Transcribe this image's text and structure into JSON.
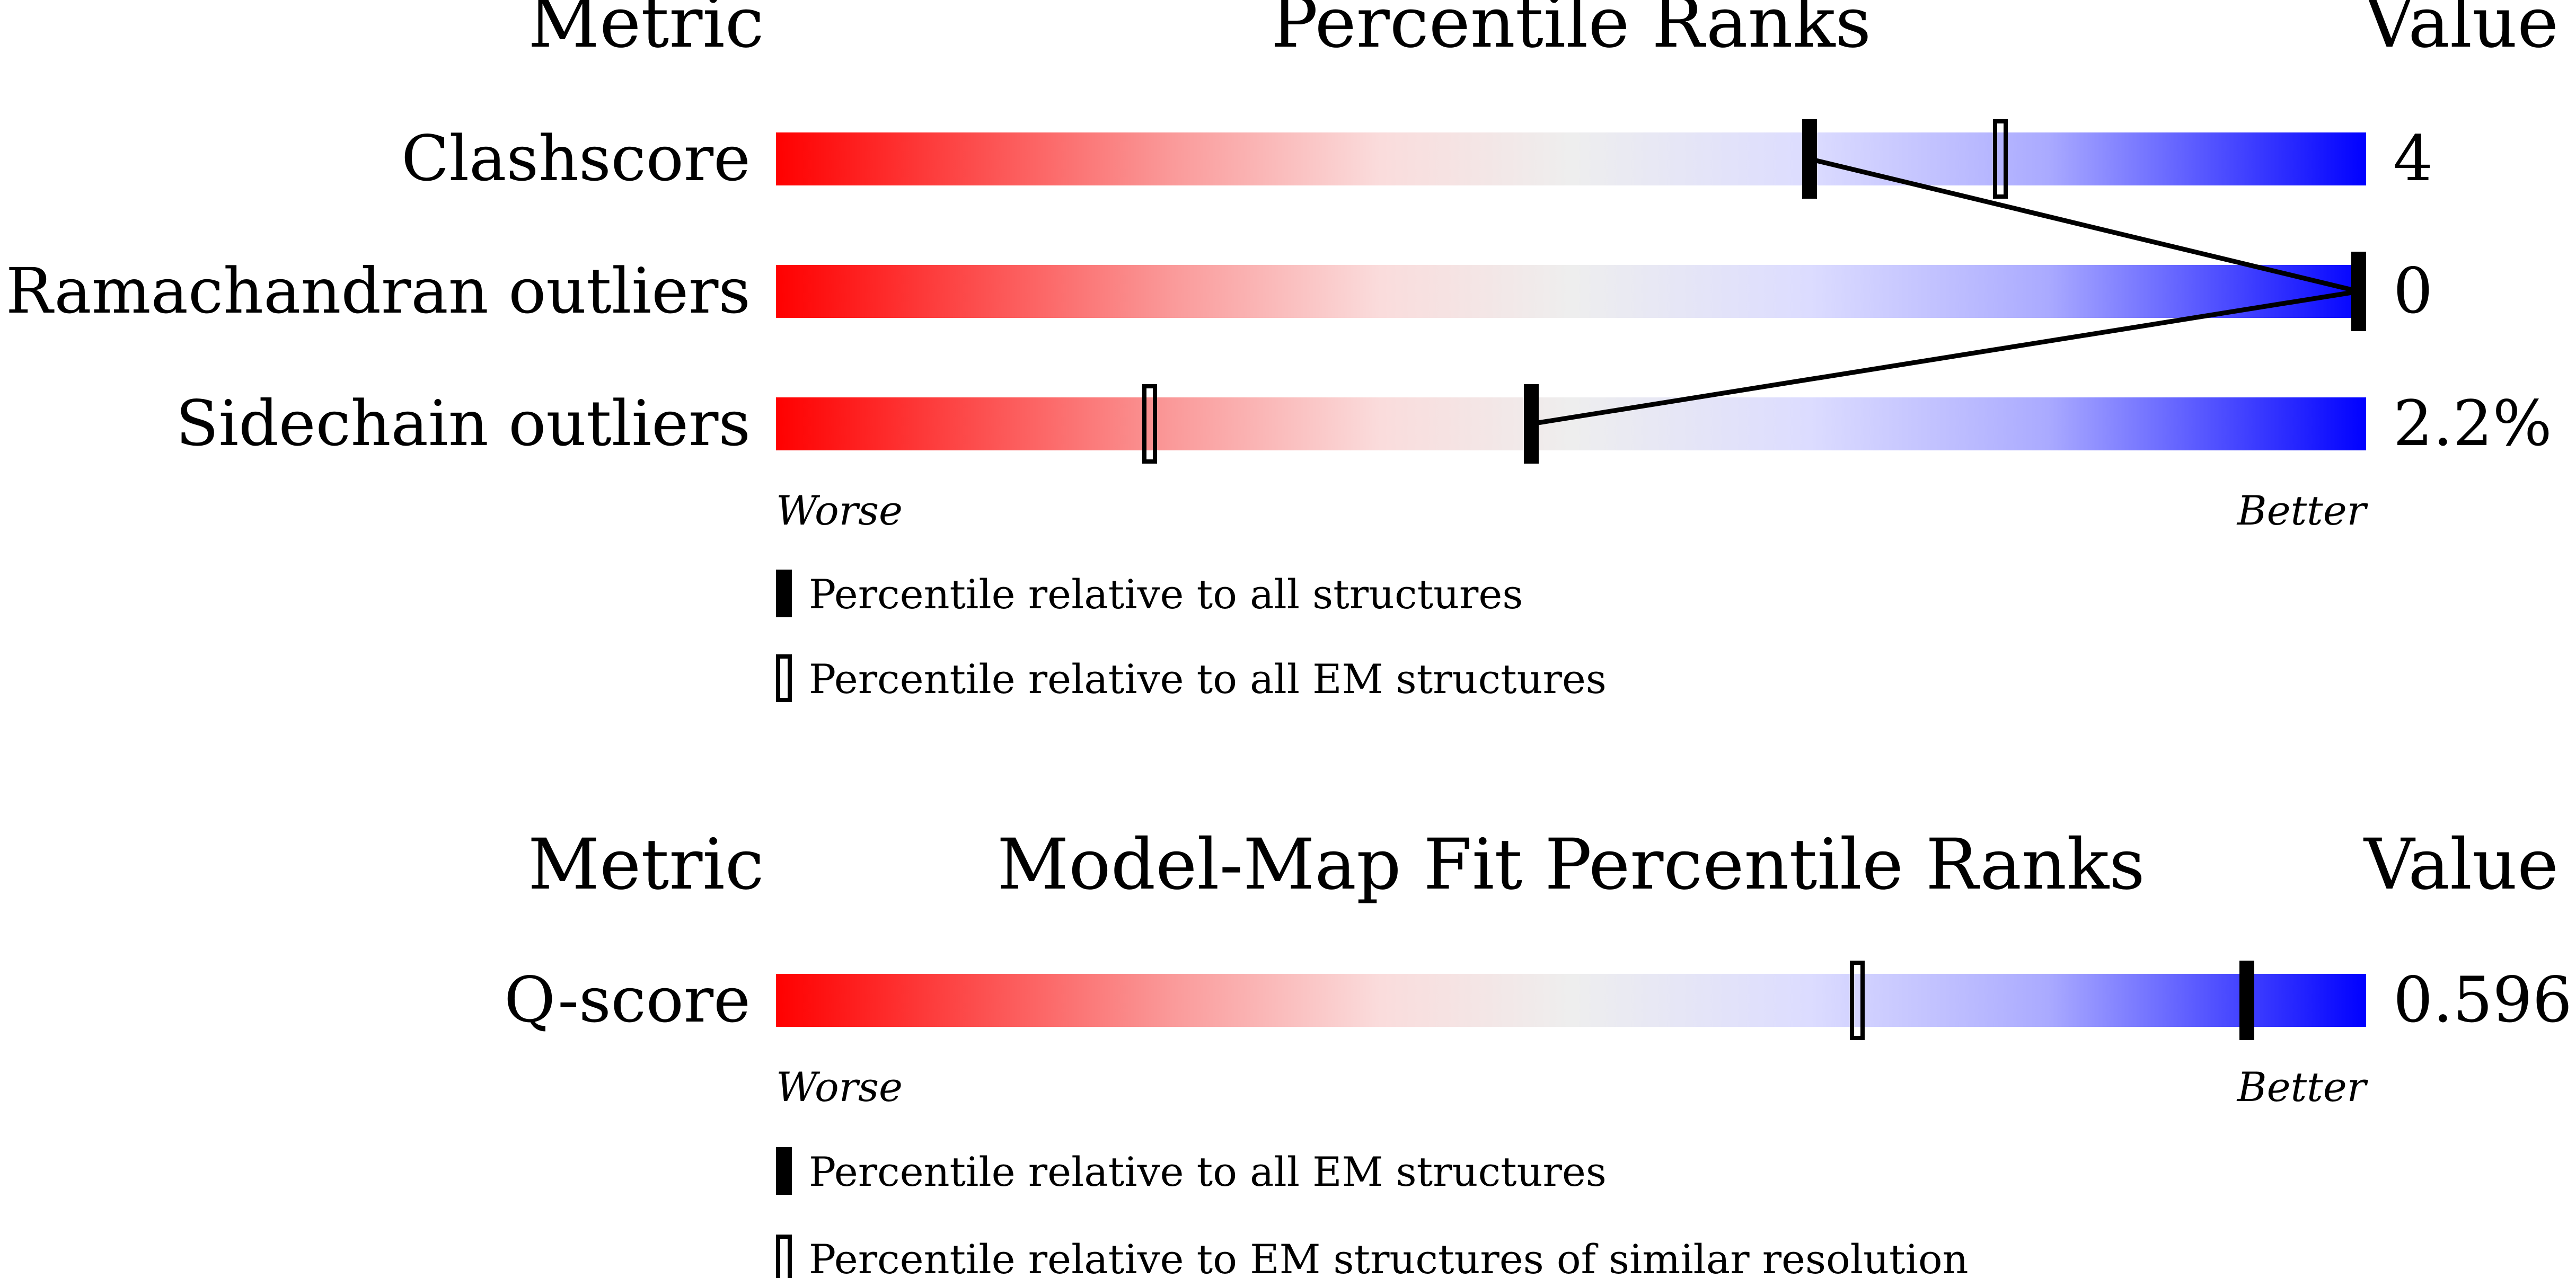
{
  "colors": {
    "worse": "#ff0000",
    "mid": "#eeeeee",
    "better_light": "#dcdcff",
    "better": "#0000ff",
    "marker": "#000000"
  },
  "chart_data": [
    {
      "type": "percentile_bar",
      "headers": {
        "metric": "Metric",
        "title": "Percentile Ranks",
        "value": "Value"
      },
      "xlim": [
        0,
        100
      ],
      "axis_words": {
        "worse": "Worse",
        "better": "Better"
      },
      "rows": [
        {
          "metric": "Clashscore",
          "value": "4",
          "percentile_all": 65,
          "percentile_em": 77
        },
        {
          "metric": "Ramachandran outliers",
          "value": "0",
          "percentile_all": 100,
          "percentile_em": 100
        },
        {
          "metric": "Sidechain outliers",
          "value": "2.2%",
          "percentile_all": 47.5,
          "percentile_em": 23.5
        }
      ],
      "connect_filled_markers": true,
      "legend": [
        {
          "marker": "filled",
          "icon": "filled-marker-icon",
          "label": "Percentile relative to all structures"
        },
        {
          "marker": "open",
          "icon": "open-marker-icon",
          "label": "Percentile relative to all EM structures"
        }
      ]
    },
    {
      "type": "percentile_bar",
      "headers": {
        "metric": "Metric",
        "title": "Model-Map Fit Percentile Ranks",
        "value": "Value"
      },
      "xlim": [
        0,
        100
      ],
      "axis_words": {
        "worse": "Worse",
        "better": "Better"
      },
      "rows": [
        {
          "metric": "Q-score",
          "value": "0.596",
          "percentile_all": 92.5,
          "percentile_em": 68
        }
      ],
      "connect_filled_markers": false,
      "legend": [
        {
          "marker": "filled",
          "icon": "filled-marker-icon",
          "label": "Percentile relative to all EM structures"
        },
        {
          "marker": "open",
          "icon": "open-marker-icon",
          "label": "Percentile relative to EM structures of similar resolution"
        }
      ]
    }
  ]
}
